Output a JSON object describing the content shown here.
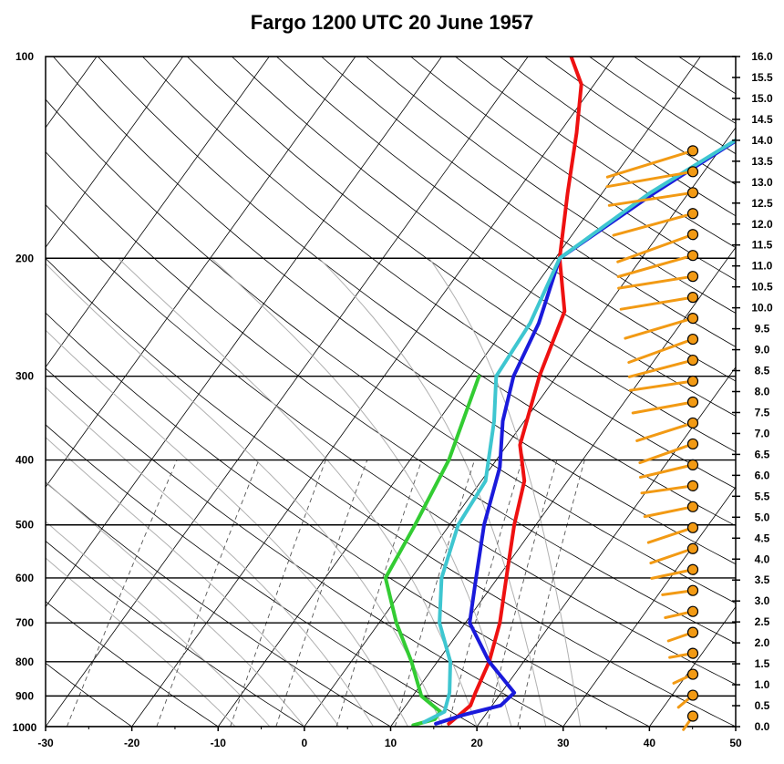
{
  "chart_data": {
    "type": "skew-t",
    "title": "Fargo 1200 UTC 20 June 1957",
    "x_axis": {
      "ticks": [
        -30,
        -20,
        -10,
        0,
        10,
        20,
        30,
        40,
        50
      ],
      "tick_labels": [
        "-30",
        "-20",
        "-10",
        "0",
        "10",
        "20",
        "30",
        "40",
        "50"
      ],
      "range": [
        -30,
        50
      ]
    },
    "pressure_axis": {
      "levels": [
        100,
        200,
        300,
        400,
        500,
        600,
        700,
        800,
        900,
        1000
      ],
      "tick_labels": [
        "100",
        "200",
        "300",
        "400",
        "500",
        "600",
        "700",
        "800",
        "900",
        "1000"
      ],
      "range": [
        1000,
        100
      ]
    },
    "height_axis": {
      "ticks": [
        0.0,
        0.5,
        1.0,
        1.5,
        2.0,
        2.5,
        3.0,
        3.5,
        4.0,
        4.5,
        5.0,
        5.5,
        6.0,
        6.5,
        7.0,
        7.5,
        8.0,
        8.5,
        9.0,
        9.5,
        10.0,
        10.5,
        11.0,
        11.5,
        12.0,
        12.5,
        13.0,
        13.5,
        14.0,
        14.5,
        15.0,
        15.5,
        16.0
      ],
      "tick_labels": [
        "0.0",
        "0.5",
        "1.0",
        "1.5",
        "2.0",
        "2.5",
        "3.0",
        "3.5",
        "4.0",
        "4.5",
        "5.0",
        "5.5",
        "6.0",
        "6.5",
        "7.0",
        "7.5",
        "8.0",
        "8.5",
        "9.0",
        "9.5",
        "10.0",
        "10.5",
        "11.0",
        "11.5",
        "12.0",
        "12.5",
        "13.0",
        "13.5",
        "14.0",
        "14.5",
        "15.0",
        "15.5",
        "16.0"
      ],
      "range": [
        0,
        16
      ]
    },
    "series": [
      {
        "color": "#ee1111",
        "points": [
          [
            16.5,
            990
          ],
          [
            17.0,
            960
          ],
          [
            17.5,
            930
          ],
          [
            17.0,
            890
          ],
          [
            16.0,
            800
          ],
          [
            14.0,
            700
          ],
          [
            11.0,
            600
          ],
          [
            7.5,
            500
          ],
          [
            5.0,
            430
          ],
          [
            1.5,
            380
          ],
          [
            -2.0,
            300
          ],
          [
            -4.5,
            240
          ],
          [
            -9.5,
            200
          ],
          [
            -14.0,
            160
          ],
          [
            -18.0,
            130
          ],
          [
            -21.5,
            110
          ],
          [
            -25.0,
            100
          ]
        ]
      },
      {
        "color": "#1a1adb",
        "points": [
          [
            15.0,
            990
          ],
          [
            17.5,
            960
          ],
          [
            21.0,
            930
          ],
          [
            21.5,
            890
          ],
          [
            16.0,
            800
          ],
          [
            10.5,
            700
          ],
          [
            7.5,
            600
          ],
          [
            4.0,
            500
          ],
          [
            1.0,
            410
          ],
          [
            -2.5,
            350
          ],
          [
            -5.0,
            300
          ],
          [
            -6.5,
            250
          ],
          [
            -9.5,
            200
          ],
          [
            -4.0,
            160
          ],
          [
            3.0,
            125
          ],
          [
            10.0,
            100
          ]
        ]
      },
      {
        "color": "#33cc33",
        "points": [
          [
            12.5,
            995
          ],
          [
            14.5,
            975
          ],
          [
            14.5,
            950
          ],
          [
            11.0,
            900
          ],
          [
            7.0,
            800
          ],
          [
            2.0,
            700
          ],
          [
            -3.0,
            600
          ],
          [
            -4.0,
            500
          ],
          [
            -5.5,
            400
          ],
          [
            -9.0,
            300
          ]
        ]
      },
      {
        "color": "#3ec6d0",
        "points": [
          [
            13.5,
            985
          ],
          [
            15.0,
            950
          ],
          [
            14.0,
            890
          ],
          [
            11.5,
            800
          ],
          [
            7.0,
            700
          ],
          [
            3.5,
            600
          ],
          [
            1.0,
            500
          ],
          [
            0.5,
            430
          ],
          [
            -3.5,
            350
          ],
          [
            -7.0,
            300
          ],
          [
            -7.5,
            250
          ],
          [
            -9.5,
            200
          ],
          [
            -4.5,
            160
          ],
          [
            3.0,
            125
          ],
          [
            10.0,
            100
          ]
        ]
      }
    ],
    "wind_barbs": {
      "color": "#f29a14",
      "heights_km": [
        0.25,
        0.75,
        1.25,
        1.75,
        2.25,
        2.75,
        3.25,
        3.75,
        4.25,
        4.75,
        5.25,
        5.75,
        6.25,
        6.75,
        7.25,
        7.75,
        8.25,
        8.75,
        9.25,
        9.75,
        10.25,
        10.75,
        11.25,
        11.75,
        12.25,
        12.75,
        13.25,
        13.75
      ]
    }
  }
}
